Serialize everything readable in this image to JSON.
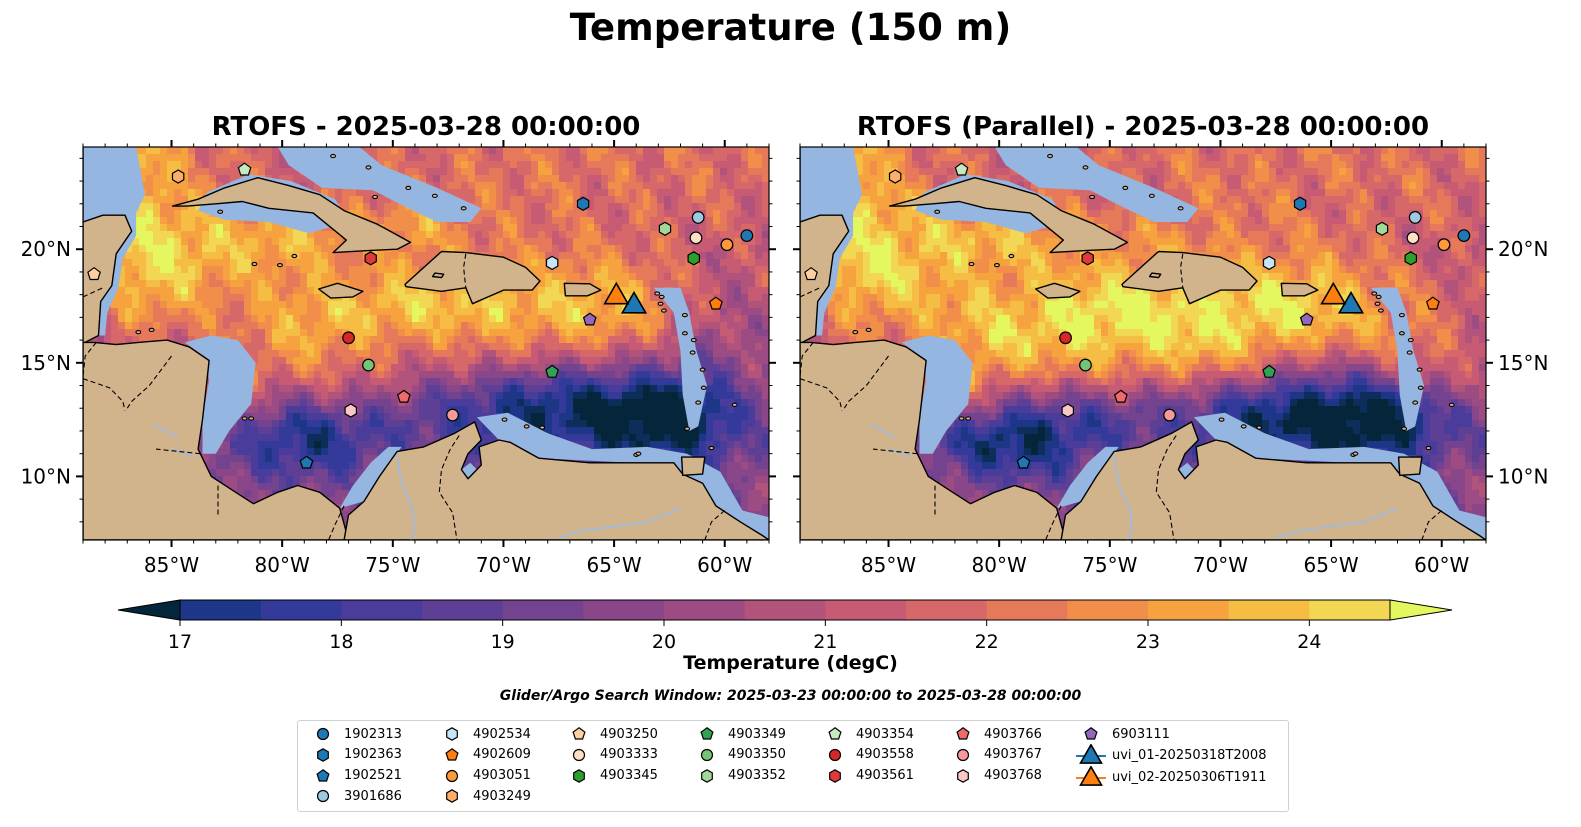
{
  "suptitle": "Temperature (150 m)",
  "panels": [
    {
      "title": "RTOFS - 2025-03-28 00:00:00",
      "variant": "operational"
    },
    {
      "title": "RTOFS (Parallel) - 2025-03-28 00:00:00",
      "variant": "parallel"
    }
  ],
  "map": {
    "lon_range": [
      -89,
      -58
    ],
    "lat_range": [
      7.2,
      24.5
    ],
    "lon_ticks": [
      -85,
      -80,
      -75,
      -70,
      -65,
      -60
    ],
    "lon_tick_labels": [
      "85°W",
      "80°W",
      "75°W",
      "70°W",
      "65°W",
      "60°W"
    ],
    "lat_ticks": [
      10,
      15,
      20
    ],
    "lat_tick_labels": [
      "10°N",
      "15°N",
      "20°N"
    ],
    "land_color": "#d2b48c",
    "shelf_color": "#95b6e0"
  },
  "colorbar": {
    "label": "Temperature (degC)",
    "ticks": [
      "17",
      "18",
      "19",
      "20",
      "21",
      "22",
      "23",
      "24"
    ],
    "tick_values": [
      17,
      18,
      19,
      20,
      21,
      22,
      23,
      24
    ],
    "levels": [
      16.5,
      17.0,
      17.5,
      18.0,
      18.5,
      19.0,
      19.5,
      20.0,
      20.5,
      21.0,
      21.5,
      22.0,
      22.5,
      23.0,
      23.5,
      24.0,
      24.5
    ],
    "colors": [
      "#05263a",
      "#0d2e5b",
      "#1d3688",
      "#343a99",
      "#4a3c9a",
      "#5e3f96",
      "#744390",
      "#89478a",
      "#9d4c83",
      "#b2537c",
      "#c65b73",
      "#d76869",
      "#e6795a",
      "#f18e4a",
      "#f6a33f",
      "#f5bd44",
      "#f2d754",
      "#e4f75e"
    ],
    "extend_low_color": "#05263a",
    "extend_high_color": "#e4f75e"
  },
  "search_window": "Glider/Argo Search Window: 2025-03-23 00:00:00 to 2025-03-28 00:00:00",
  "legend": [
    {
      "label": "1902313",
      "marker": "circle",
      "color": "#1f77b4"
    },
    {
      "label": "1902363",
      "marker": "hexagon",
      "color": "#1f77b4"
    },
    {
      "label": "1902521",
      "marker": "pentagon",
      "color": "#1f77b4"
    },
    {
      "label": "3901686",
      "marker": "circle",
      "color": "#9ecae1"
    },
    {
      "label": "4902534",
      "marker": "hexagon",
      "color": "#c6e6f7"
    },
    {
      "label": "4902609",
      "marker": "pentagon",
      "color": "#ff7f0e"
    },
    {
      "label": "4903051",
      "marker": "circle",
      "color": "#fd9a3c"
    },
    {
      "label": "4903249",
      "marker": "hexagon",
      "color": "#fdae6b"
    },
    {
      "label": "4903250",
      "marker": "pentagon",
      "color": "#fdd0a2"
    },
    {
      "label": "4903333",
      "marker": "circle",
      "color": "#fde0c5"
    },
    {
      "label": "4903345",
      "marker": "hexagon",
      "color": "#2ca02c"
    },
    {
      "label": "4903349",
      "marker": "pentagon",
      "color": "#31a354"
    },
    {
      "label": "4903350",
      "marker": "circle",
      "color": "#74c476"
    },
    {
      "label": "4903352",
      "marker": "hexagon",
      "color": "#a1d99b"
    },
    {
      "label": "4903354",
      "marker": "pentagon",
      "color": "#c7e9c0"
    },
    {
      "label": "4903558",
      "marker": "circle",
      "color": "#d62728"
    },
    {
      "label": "4903561",
      "marker": "hexagon",
      "color": "#e0393a"
    },
    {
      "label": "4903766",
      "marker": "pentagon",
      "color": "#ee6a6b"
    },
    {
      "label": "4903767",
      "marker": "circle",
      "color": "#f59a99"
    },
    {
      "label": "4903768",
      "marker": "hexagon",
      "color": "#fbc7c6"
    },
    {
      "label": "6903111",
      "marker": "pentagon",
      "color": "#9467bd"
    },
    {
      "label": "uvi_01-20250318T2008",
      "marker": "triangle",
      "color": "#1f77b4"
    },
    {
      "label": "uvi_02-20250306T1911",
      "marker": "triangle",
      "color": "#ff7f0e"
    }
  ],
  "observations": [
    {
      "id": "1902313",
      "lon": -59.0,
      "lat": 20.6
    },
    {
      "id": "1902363",
      "lon": -66.4,
      "lat": 22.0
    },
    {
      "id": "1902521",
      "lon": -78.9,
      "lat": 10.6
    },
    {
      "id": "3901686",
      "lon": -61.2,
      "lat": 21.4
    },
    {
      "id": "4902534",
      "lon": -67.8,
      "lat": 19.4
    },
    {
      "id": "4902609",
      "lon": -60.4,
      "lat": 17.6
    },
    {
      "id": "4903051",
      "lon": -59.9,
      "lat": 20.2
    },
    {
      "id": "4903249",
      "lon": -84.7,
      "lat": 23.2
    },
    {
      "id": "4903250",
      "lon": -88.5,
      "lat": 18.9
    },
    {
      "id": "4903333",
      "lon": -61.3,
      "lat": 20.5
    },
    {
      "id": "4903345",
      "lon": -61.4,
      "lat": 19.6
    },
    {
      "id": "4903349",
      "lon": -67.8,
      "lat": 14.6
    },
    {
      "id": "4903350",
      "lon": -76.1,
      "lat": 14.9
    },
    {
      "id": "4903352",
      "lon": -62.7,
      "lat": 20.9
    },
    {
      "id": "4903354",
      "lon": -81.7,
      "lat": 23.5
    },
    {
      "id": "4903558",
      "lon": -77.0,
      "lat": 16.1
    },
    {
      "id": "4903561",
      "lon": -76.0,
      "lat": 19.6
    },
    {
      "id": "4903766",
      "lon": -74.5,
      "lat": 13.5
    },
    {
      "id": "4903767",
      "lon": -72.3,
      "lat": 12.7
    },
    {
      "id": "4903768",
      "lon": -76.9,
      "lat": 12.9
    },
    {
      "id": "6903111",
      "lon": -66.1,
      "lat": 16.9
    },
    {
      "id": "uvi_01-20250318T2008",
      "lon": -64.1,
      "lat": 17.5
    },
    {
      "id": "uvi_02-20250306T1911",
      "lon": -64.9,
      "lat": 17.9
    }
  ]
}
